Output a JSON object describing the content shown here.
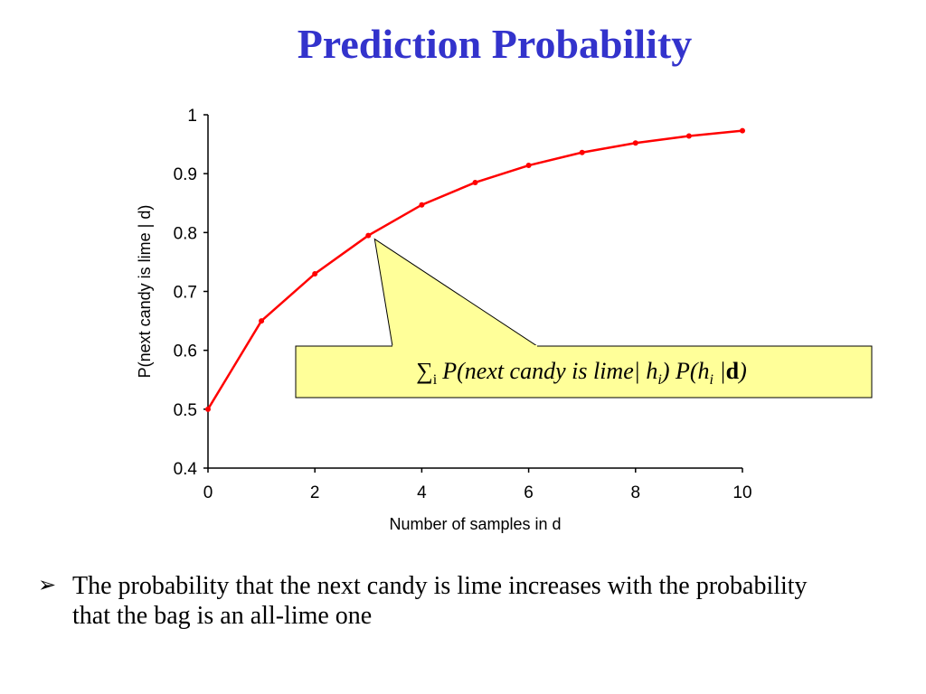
{
  "slide": {
    "title": "Prediction Probability",
    "bullet_icon": "arrow-bullet-icon",
    "bullet_text": "The probability that the next candy is lime increases with the probability that the bag is an all-lime one"
  },
  "callout": {
    "sum_symbol": "∑",
    "sum_index": "i",
    "expr_part1": "P(next candy is lime| h",
    "expr_sub1": "i",
    "expr_part2": ") P(h",
    "expr_sub2": "i",
    "expr_part3": " |",
    "expr_bold": "d",
    "expr_part4": ")",
    "fill_color": "#ffff99"
  },
  "chart_data": {
    "type": "line",
    "xlabel": "Number of samples in d",
    "ylabel": "P(next candy is lime | d)",
    "xlim": [
      0,
      10
    ],
    "ylim": [
      0.4,
      1
    ],
    "x_ticks": [
      0,
      2,
      4,
      6,
      8,
      10
    ],
    "y_ticks": [
      0.4,
      0.5,
      0.6,
      0.7,
      0.8,
      0.9,
      1
    ],
    "grid": false,
    "series": [
      {
        "color": "#ff0000",
        "x": [
          0,
          1,
          2,
          3,
          4,
          5,
          6,
          7,
          8,
          9,
          10
        ],
        "values": [
          0.5,
          0.65,
          0.73,
          0.795,
          0.847,
          0.885,
          0.914,
          0.936,
          0.952,
          0.964,
          0.973
        ]
      }
    ]
  }
}
